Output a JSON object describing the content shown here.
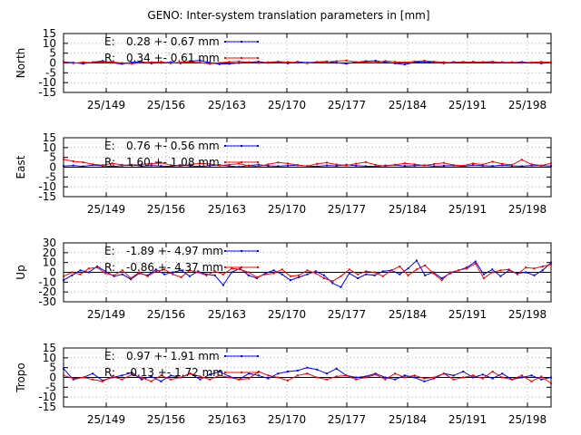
{
  "chart_data": {
    "type": "line",
    "title": "GENO: Inter-system translation parameters in [mm]",
    "x_tick_labels": [
      "25/149",
      "25/156",
      "25/163",
      "25/170",
      "25/177",
      "25/184",
      "25/191",
      "25/198"
    ],
    "colors": {
      "E": "#0000ff",
      "R": "#ff0000"
    },
    "grid": "dotted",
    "panels": [
      {
        "ylabel": "North",
        "ylim": [
          -15,
          15
        ],
        "yticks": [
          "15",
          "10",
          "5",
          "0",
          "-5",
          "-10",
          "-15"
        ],
        "legend": [
          {
            "name": "E",
            "text": "0.28 +- 0.67 mm"
          },
          {
            "name": "R",
            "text": "0.34 +- 0.61 mm"
          }
        ],
        "series": [
          {
            "name": "E",
            "values": [
              0.5,
              0.2,
              -0.3,
              0.4,
              1.0,
              0.1,
              -0.5,
              0.3,
              0.6,
              -0.2,
              0.1,
              0.4,
              -0.1,
              0.9,
              1.3,
              0.2,
              -0.6,
              -0.4,
              0.0,
              0.4,
              0.7,
              0.1,
              0.3,
              -0.2,
              0.6,
              0.2,
              0.5,
              0.8,
              0.1,
              -0.3,
              0.4,
              0.9,
              1.1,
              0.4,
              -0.2,
              -0.8,
              0.3,
              0.7,
              0.2,
              -0.1,
              0.5,
              0.2,
              0.6,
              0.3,
              0.1,
              0.4,
              0.2,
              0.5,
              0.1,
              -0.2,
              0.2
            ]
          },
          {
            "name": "R",
            "values": [
              0.3,
              -0.1,
              0.4,
              0.2,
              0.6,
              0.5,
              0.0,
              -0.3,
              0.2,
              0.4,
              0.6,
              -0.1,
              0.3,
              0.5,
              0.2,
              -0.4,
              0.1,
              0.6,
              0.8,
              0.3,
              0.1,
              0.4,
              0.7,
              0.5,
              0.2,
              -0.1,
              0.3,
              0.6,
              0.9,
              1.2,
              0.5,
              0.4,
              0.2,
              1.0,
              0.6,
              0.3,
              0.8,
              1.1,
              0.7,
              0.4,
              0.2,
              0.6,
              0.3,
              0.5,
              0.7,
              0.2,
              0.4,
              0.1,
              0.3,
              0.6,
              0.4
            ]
          }
        ]
      },
      {
        "ylabel": "East",
        "ylim": [
          -15,
          15
        ],
        "yticks": [
          "15",
          "10",
          "5",
          "0",
          "-5",
          "-10",
          "-15"
        ],
        "legend": [
          {
            "name": "E",
            "text": "0.76 +- 0.56 mm"
          },
          {
            "name": "R",
            "text": "1.60 +- 1.08 mm"
          }
        ],
        "series": [
          {
            "name": "E",
            "values": [
              0.6,
              0.9,
              0.4,
              1.1,
              0.7,
              0.3,
              0.8,
              1.2,
              0.5,
              0.9,
              0.6,
              0.4,
              1.0,
              0.7,
              0.3,
              0.8,
              1.1,
              0.6,
              0.2,
              0.9,
              1.3,
              0.7,
              0.5,
              0.8,
              1.0,
              0.6,
              0.4,
              0.9,
              0.7,
              1.2,
              0.8,
              0.5,
              0.3,
              0.9,
              1.1,
              0.6,
              0.8,
              1.0,
              0.5,
              0.7,
              0.9,
              0.4,
              1.1,
              0.8,
              0.6,
              1.0,
              0.7,
              0.5,
              0.9,
              0.8,
              0.6
            ]
          },
          {
            "name": "R",
            "values": [
              4.0,
              3.0,
              2.5,
              1.5,
              1.0,
              2.0,
              1.2,
              0.8,
              1.5,
              1.8,
              2.2,
              1.0,
              0.5,
              1.4,
              2.0,
              1.6,
              0.9,
              1.3,
              1.8,
              0.7,
              0.3,
              1.5,
              2.4,
              1.9,
              1.1,
              0.6,
              1.7,
              2.3,
              1.4,
              0.9,
              1.8,
              2.6,
              1.2,
              0.5,
              1.3,
              2.0,
              1.5,
              0.9,
              1.6,
              2.2,
              1.1,
              0.8,
              1.9,
              1.4,
              2.8,
              1.7,
              1.2,
              3.8,
              1.5,
              0.9,
              2.0
            ]
          }
        ]
      },
      {
        "ylabel": "Up",
        "ylim": [
          -30,
          30
        ],
        "yticks": [
          "30",
          "20",
          "10",
          "0",
          "-10",
          "-20",
          "-30"
        ],
        "legend": [
          {
            "name": "E",
            "text": "-1.89 +- 4.97 mm"
          },
          {
            "name": "R",
            "text": "-0.86 +- 4.37 mm"
          }
        ],
        "series": [
          {
            "name": "E",
            "values": [
              -8,
              -3,
              2,
              0,
              6,
              1,
              -4,
              -2,
              -7,
              -1,
              -3,
              3,
              -2,
              0,
              2,
              -4,
              1,
              -2,
              -3,
              -13,
              0,
              4,
              -3,
              -6,
              -1,
              2,
              -2,
              -8,
              -5,
              -2,
              1,
              -3,
              -11,
              -15,
              -1,
              -6,
              -2,
              -3,
              1,
              2,
              -2,
              4,
              12,
              -3,
              0,
              -6,
              -1,
              2,
              5,
              11,
              -2,
              3,
              -4,
              2,
              -1,
              0,
              -3,
              2,
              10
            ]
          },
          {
            "name": "R",
            "values": [
              -4,
              0,
              -2,
              4,
              5,
              -1,
              -3,
              2,
              -6,
              0,
              -4,
              1,
              3,
              -2,
              -5,
              2,
              0,
              -3,
              1,
              -2,
              4,
              3,
              0,
              -5,
              -2,
              -1,
              3,
              -4,
              -3,
              2,
              -1,
              -6,
              -9,
              -4,
              3,
              -2,
              1,
              0,
              -4,
              2,
              6,
              -3,
              3,
              7,
              -1,
              -8,
              0,
              2,
              4,
              9,
              -6,
              0,
              2,
              3,
              -2,
              5,
              4,
              6,
              8
            ]
          }
        ]
      },
      {
        "ylabel": "Tropo",
        "ylim": [
          -15,
          15
        ],
        "yticks": [
          "15",
          "10",
          "5",
          "0",
          "-5",
          "-10",
          "-15"
        ],
        "legend": [
          {
            "name": "E",
            "text": "0.97 +- 1.91 mm"
          },
          {
            "name": "R",
            "text": "-0.13 +- 1.72 mm"
          }
        ],
        "series": [
          {
            "name": "E",
            "values": [
              4.5,
              -1,
              0,
              2,
              -1.5,
              0,
              1,
              2.5,
              -1,
              0.5,
              -2,
              1,
              0,
              2,
              -1,
              1.5,
              3,
              0.5,
              -1,
              2,
              1,
              -0.5,
              2,
              3,
              3.5,
              5,
              4,
              2,
              4.5,
              1,
              0,
              0.5,
              2,
              0,
              -1,
              1,
              0,
              -2,
              -0.5,
              2,
              1,
              3,
              0,
              1.5,
              -0.5,
              2,
              -1,
              0,
              1,
              -1,
              0
            ]
          },
          {
            "name": "R",
            "values": [
              1,
              -0.5,
              0,
              -1,
              -2,
              0.5,
              -1,
              1.5,
              0,
              -2,
              1,
              -1,
              0,
              2,
              0.5,
              -1,
              1,
              0,
              -1,
              -0.5,
              3,
              1,
              0,
              -1.5,
              1,
              2,
              0,
              -1,
              0.5,
              1,
              -1,
              0,
              1.5,
              -1,
              2,
              0,
              1,
              -0.5,
              0,
              2,
              -1,
              0,
              1,
              -0.5,
              3,
              0,
              -1,
              1,
              -2,
              0.5,
              -3
            ]
          }
        ]
      }
    ]
  }
}
